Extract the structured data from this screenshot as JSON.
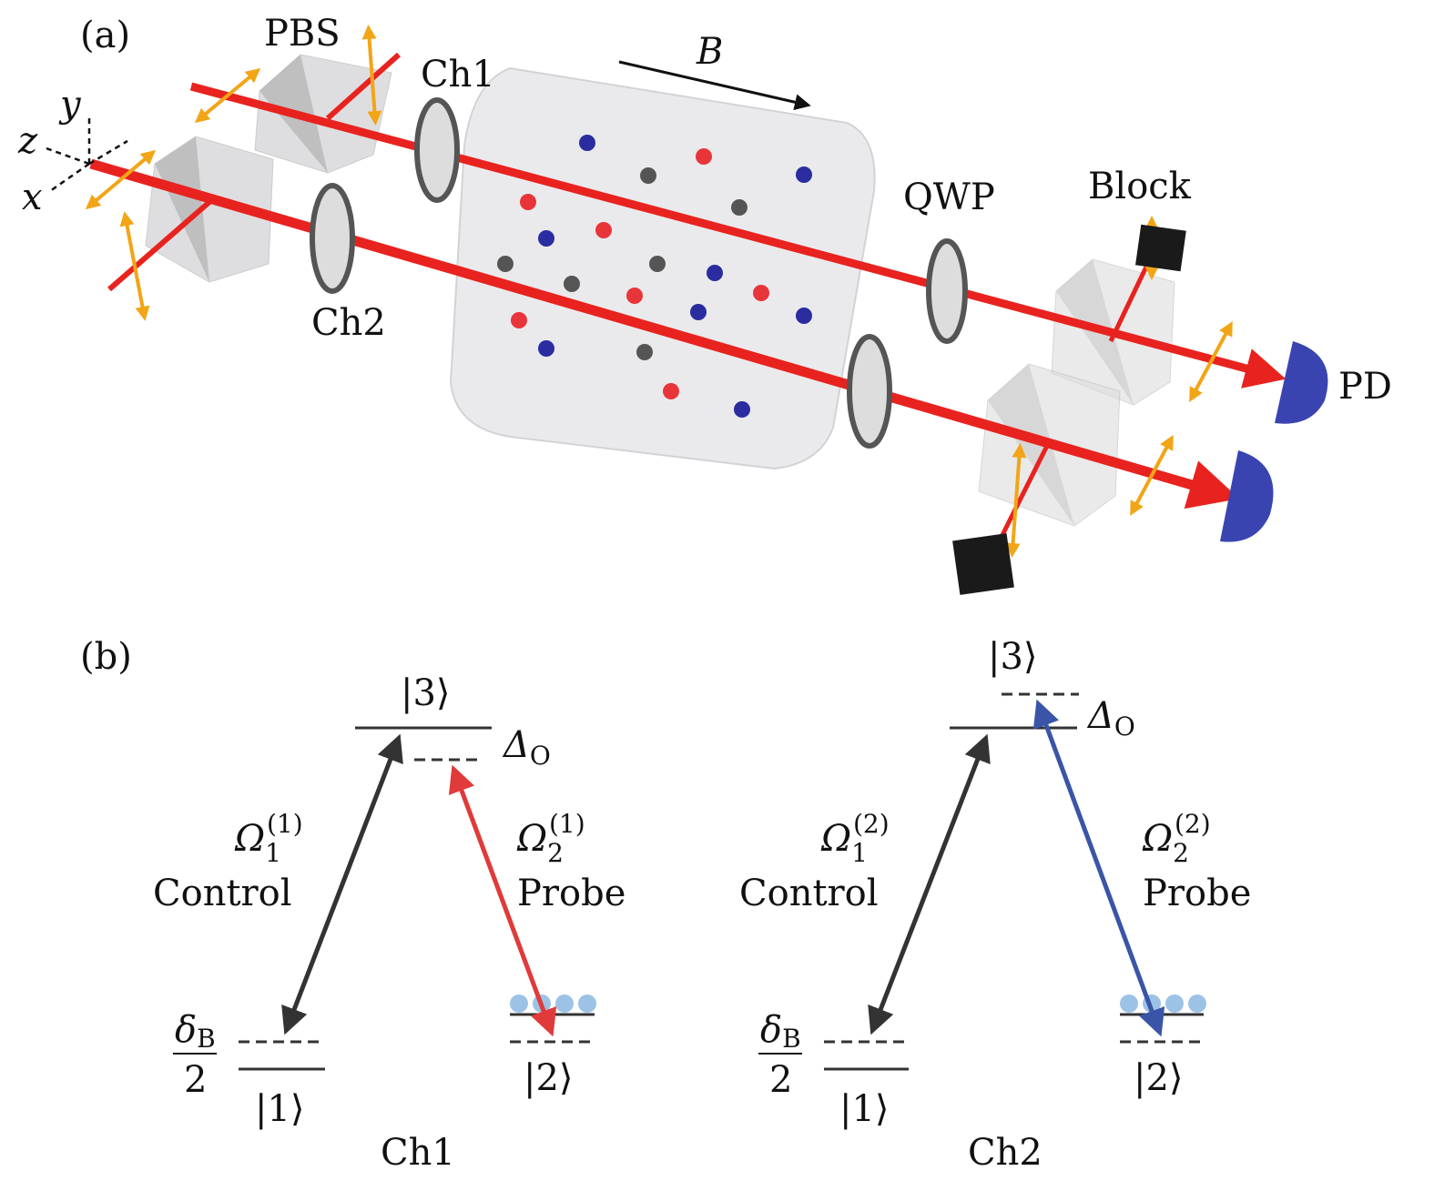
{
  "panel_a": {
    "label": "(a)",
    "pbs": "PBS",
    "ch1": "Ch1",
    "ch2": "Ch2",
    "field": "B",
    "axis_y": "y",
    "axis_z": "z",
    "axis_x": "x",
    "qwp": "QWP",
    "block": "Block",
    "pd": "PD",
    "colors": {
      "beam": "#e8231f",
      "polarization": "#f2a516",
      "atom_red": "#e8353a",
      "atom_blue": "#2a2ca0",
      "atom_gray": "#555555",
      "detector": "#3a44b0"
    }
  },
  "panel_b": {
    "label": "(b)",
    "ch1": {
      "title": "Ch1",
      "level3": "|3⟩",
      "level1": "|1⟩",
      "level2": "|2⟩",
      "detuning_symbol": "Δ",
      "detuning_sub": "O",
      "control_symbol": "Ω",
      "control_sub": "1",
      "control_sup": "(1)",
      "control_label": "Control",
      "probe_symbol": "Ω",
      "probe_sub": "2",
      "probe_sup": "(1)",
      "probe_label": "Probe",
      "zeeman_num": "δ",
      "zeeman_sub": "B",
      "zeeman_den": "2",
      "probe_color": "#e03a3a"
    },
    "ch2": {
      "title": "Ch2",
      "level3": "|3⟩",
      "level1": "|1⟩",
      "level2": "|2⟩",
      "detuning_symbol": "Δ",
      "detuning_sub": "O",
      "control_symbol": "Ω",
      "control_sub": "1",
      "control_sup": "(2)",
      "control_label": "Control",
      "probe_symbol": "Ω",
      "probe_sub": "2",
      "probe_sup": "(2)",
      "probe_label": "Probe",
      "zeeman_num": "δ",
      "zeeman_sub": "B",
      "zeeman_den": "2",
      "probe_color": "#3a55a8"
    },
    "control_color": "#333333",
    "population_color": "#9cc3e6"
  }
}
